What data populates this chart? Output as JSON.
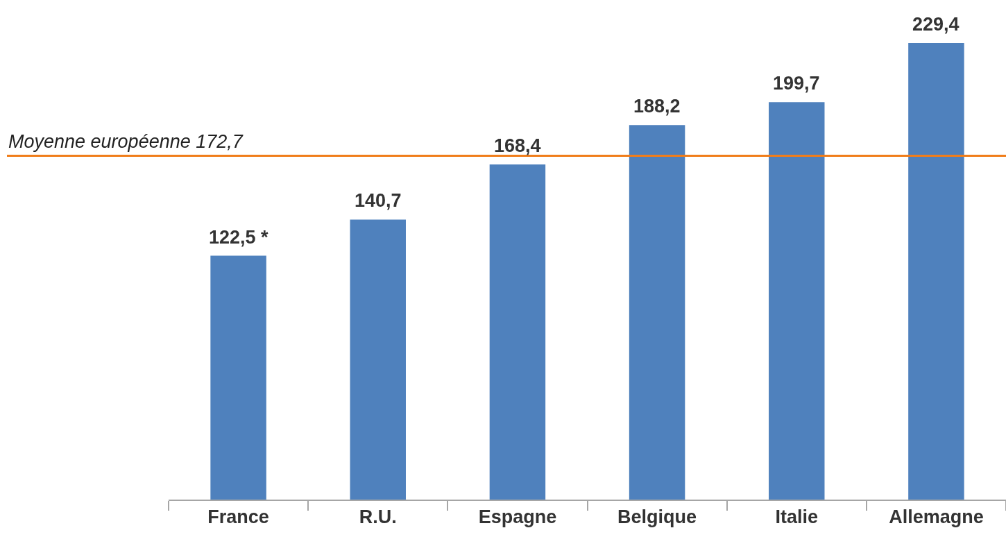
{
  "chart_data": {
    "type": "bar",
    "categories": [
      "France",
      "R.U.",
      "Espagne",
      "Belgique",
      "Italie",
      "Allemagne"
    ],
    "values": [
      122.5,
      140.7,
      168.4,
      188.2,
      199.7,
      229.4
    ],
    "value_labels": [
      "122,5 *",
      "140,7",
      "168,4",
      "188,2",
      "199,7",
      "229,4"
    ],
    "color": "#4f81bd",
    "ylim": [
      0,
      251
    ],
    "tick_labels": "x",
    "ref_lines": [
      {
        "axis": "y",
        "value": 172.7,
        "label": "Moyenne européenne 172,7",
        "color": "#f07d1a"
      }
    ]
  }
}
